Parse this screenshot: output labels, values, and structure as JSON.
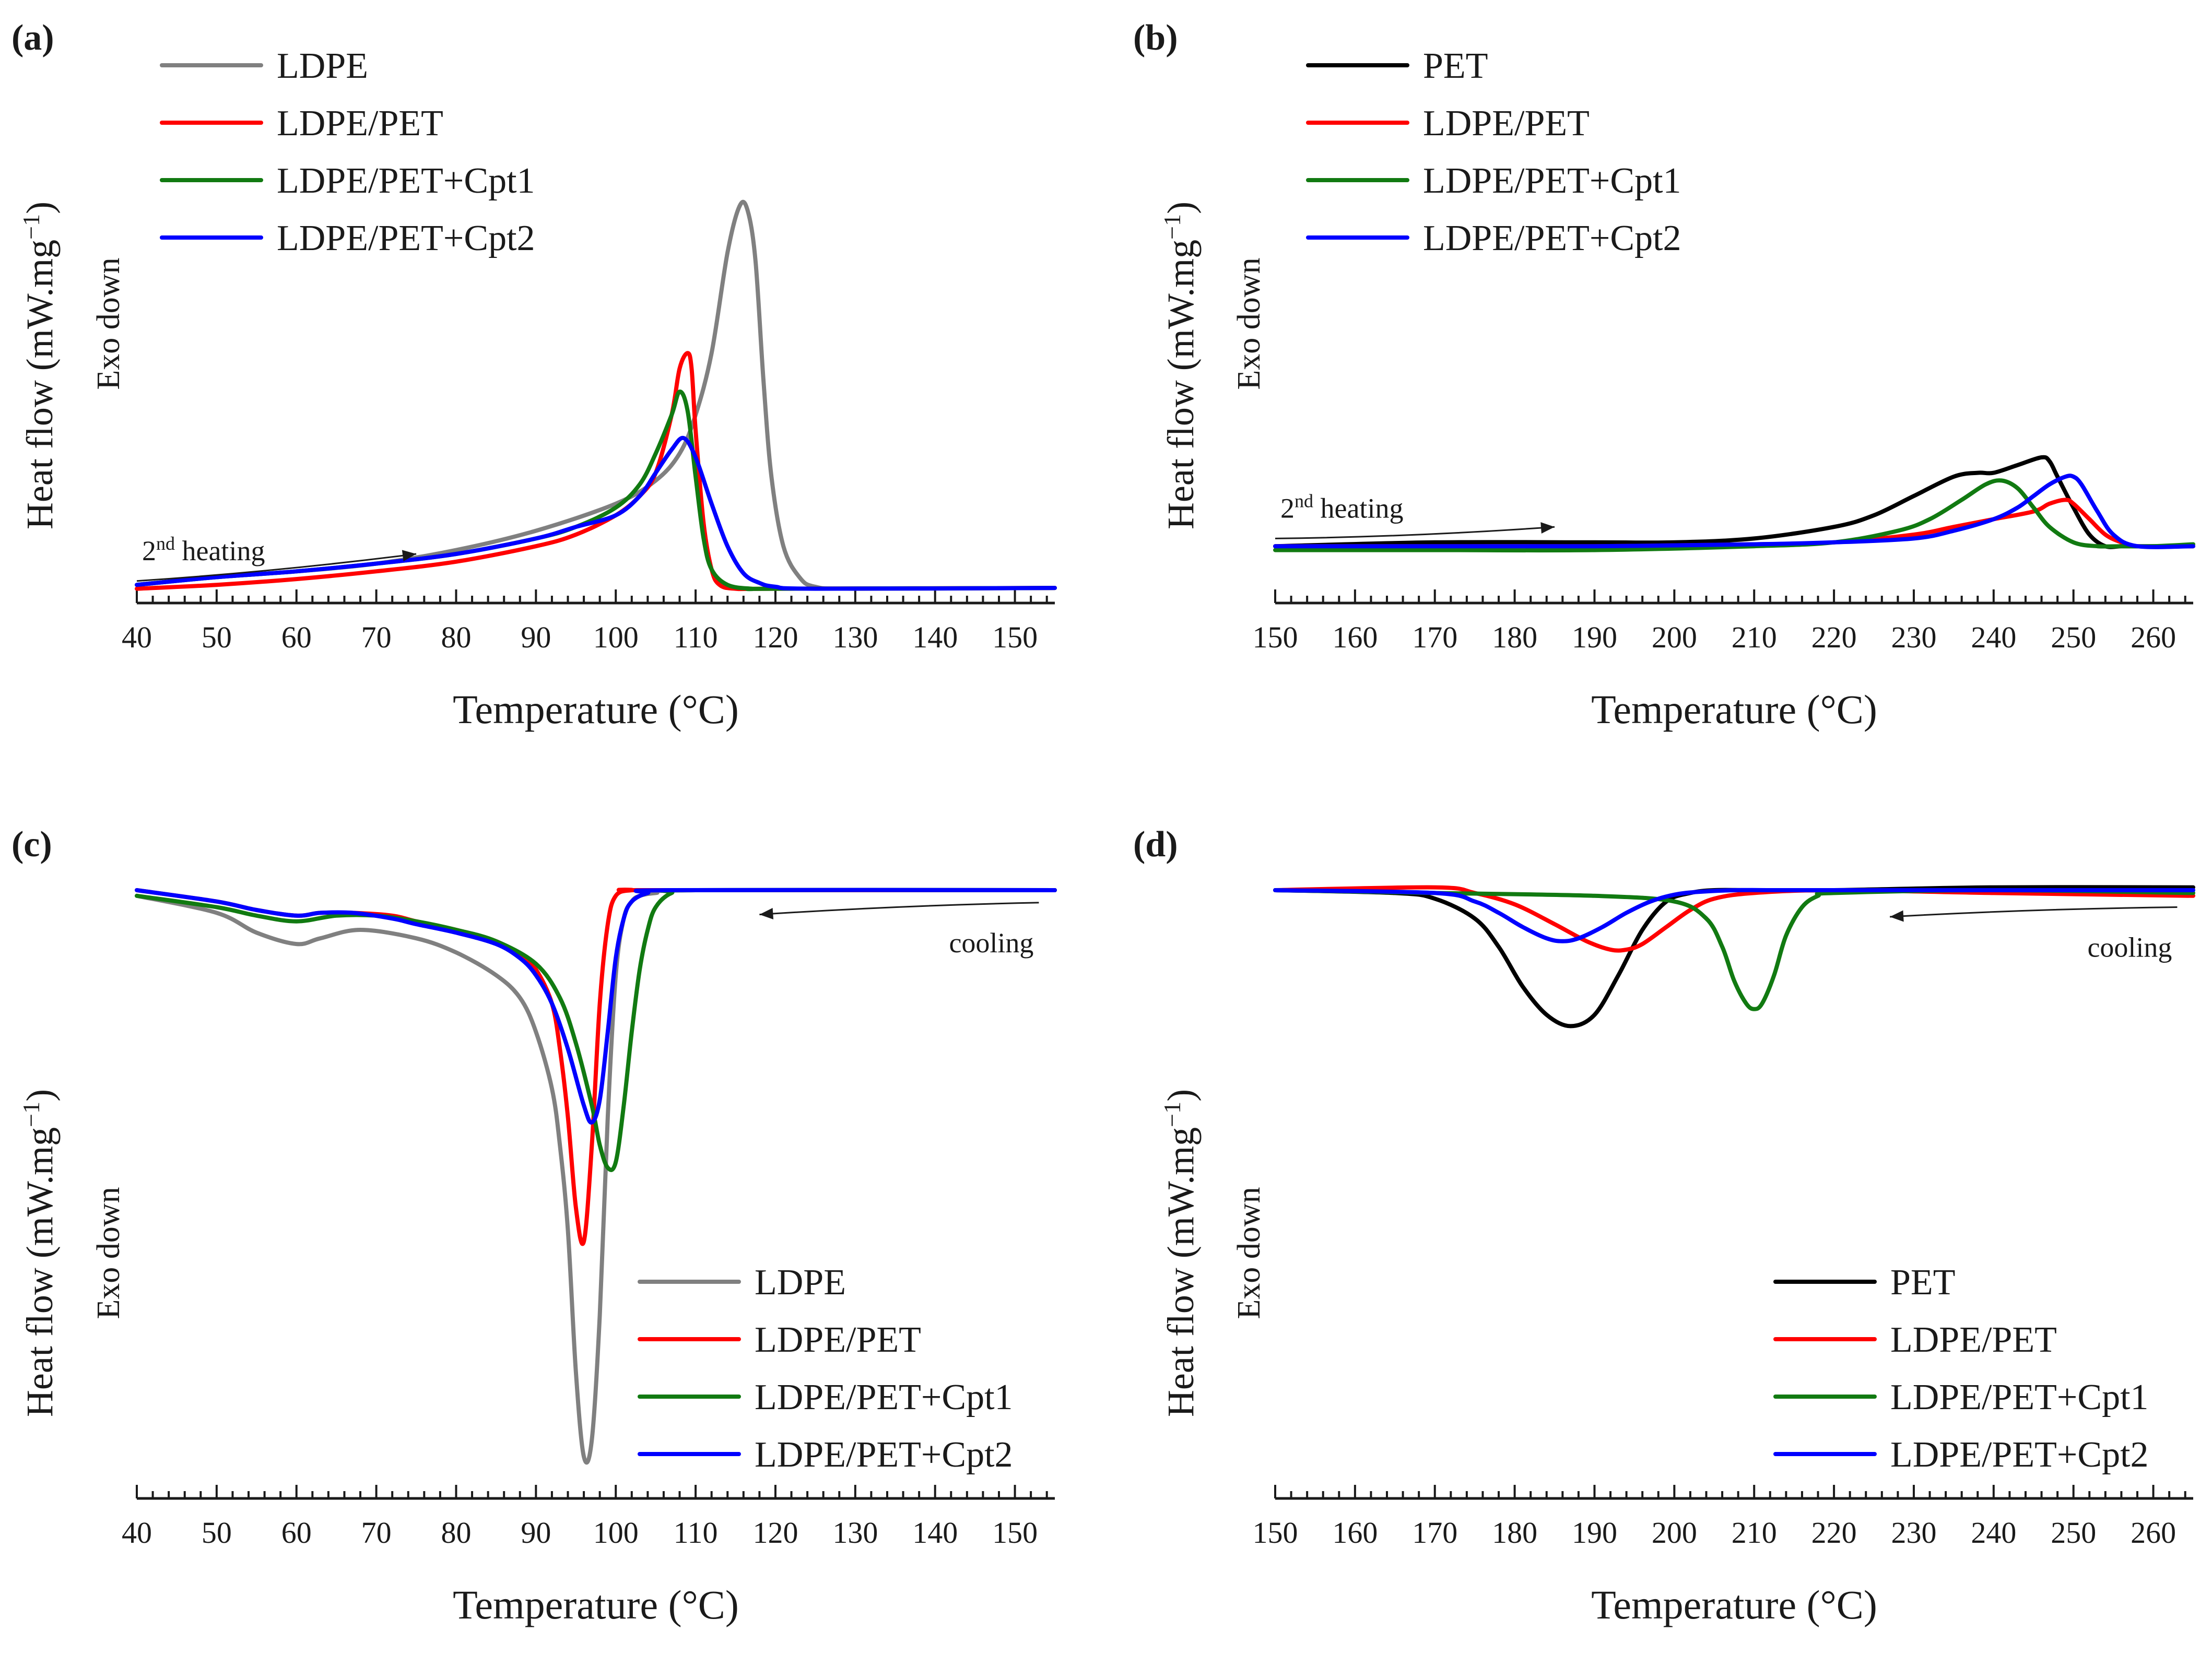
{
  "figure": {
    "ylabel": "Heat flow (mW.mg",
    "ylabel_sup": "−1",
    "ylabel_end": ")",
    "exo_label": "Exo down",
    "xlabel": "Temperature (°C)"
  },
  "colors": {
    "LDPE": "#808080",
    "PET": "#000000",
    "LDPE/PET": "#ff0000",
    "LDPE/PET+Cpt1": "#117a11",
    "LDPE/PET+Cpt2": "#0000ff"
  },
  "chart_data": [
    {
      "panel": "(a)",
      "type": "line",
      "title": "",
      "xlabel": "Temperature (°C)",
      "ylabel": "Heat flow (mW.mg−1)",
      "xlim": [
        40,
        155
      ],
      "ylim": [
        0,
        1
      ],
      "x_ticks": [
        40,
        50,
        60,
        70,
        80,
        90,
        100,
        110,
        120,
        130,
        140,
        150
      ],
      "annotation": {
        "text": "2",
        "sup": "nd",
        "rest": " heating",
        "arrow_from": [
          40,
          0.03
        ],
        "arrow_to": [
          75,
          0.1
        ]
      },
      "series": [
        {
          "name": "LDPE",
          "x": [
            40,
            50,
            60,
            70,
            80,
            90,
            100,
            105,
            108,
            110,
            112,
            114,
            115.5,
            116.5,
            117.5,
            118.5,
            119.5,
            121,
            123,
            125,
            130,
            155
          ],
          "y": [
            0.02,
            0.04,
            0.055,
            0.075,
            0.11,
            0.16,
            0.23,
            0.29,
            0.36,
            0.46,
            0.62,
            0.88,
            1.0,
            0.99,
            0.86,
            0.55,
            0.3,
            0.12,
            0.04,
            0.015,
            0.01,
            0.012
          ]
        },
        {
          "name": "LDPE/PET",
          "x": [
            40,
            50,
            60,
            70,
            80,
            90,
            95,
            100,
            103,
            105,
            107,
            108,
            109,
            109.5,
            110,
            111,
            112,
            113,
            115,
            120,
            155
          ],
          "y": [
            0.01,
            0.02,
            0.035,
            0.055,
            0.08,
            0.12,
            0.15,
            0.2,
            0.25,
            0.31,
            0.46,
            0.58,
            0.62,
            0.58,
            0.42,
            0.18,
            0.06,
            0.02,
            0.01,
            0.01,
            0.012
          ]
        },
        {
          "name": "LDPE/PET+Cpt1",
          "x": [
            40,
            50,
            60,
            70,
            80,
            90,
            95,
            100,
            103,
            105,
            107,
            108,
            109,
            110,
            111,
            112,
            114,
            117,
            120,
            155
          ],
          "y": [
            0.02,
            0.04,
            0.055,
            0.075,
            0.1,
            0.14,
            0.17,
            0.22,
            0.28,
            0.36,
            0.46,
            0.52,
            0.47,
            0.3,
            0.14,
            0.06,
            0.02,
            0.01,
            0.01,
            0.012
          ]
        },
        {
          "name": "LDPE/PET+Cpt2",
          "x": [
            40,
            50,
            60,
            70,
            80,
            90,
            95,
            100,
            103,
            105,
            107,
            108.5,
            110,
            112,
            114,
            116,
            118,
            120,
            125,
            155
          ],
          "y": [
            0.02,
            0.04,
            0.055,
            0.075,
            0.1,
            0.14,
            0.17,
            0.2,
            0.25,
            0.31,
            0.37,
            0.4,
            0.35,
            0.23,
            0.12,
            0.05,
            0.025,
            0.015,
            0.01,
            0.012
          ]
        }
      ]
    },
    {
      "panel": "(b)",
      "type": "line",
      "title": "",
      "xlabel": "Temperature (°C)",
      "ylabel": "Heat flow (mW.mg−1)",
      "xlim": [
        150,
        265
      ],
      "ylim": [
        0,
        1
      ],
      "x_ticks": [
        150,
        160,
        170,
        180,
        190,
        200,
        210,
        220,
        230,
        240,
        250,
        260
      ],
      "annotation": {
        "text": "2",
        "sup": "nd",
        "rest": " heating",
        "arrow_from": [
          150,
          0.14
        ],
        "arrow_to": [
          185,
          0.17
        ]
      },
      "series": [
        {
          "name": "PET",
          "x": [
            150,
            170,
            190,
            200,
            210,
            220,
            225,
            230,
            235,
            238,
            240,
            243,
            246,
            247,
            248,
            250,
            252,
            254,
            256,
            258,
            265
          ],
          "y": [
            0.12,
            0.13,
            0.13,
            0.13,
            0.14,
            0.17,
            0.2,
            0.25,
            0.3,
            0.31,
            0.31,
            0.33,
            0.35,
            0.34,
            0.3,
            0.22,
            0.15,
            0.12,
            0.12,
            0.12,
            0.12
          ]
        },
        {
          "name": "LDPE/PET",
          "x": [
            150,
            170,
            190,
            210,
            220,
            230,
            235,
            240,
            245,
            247,
            249,
            250,
            252,
            254,
            256,
            258,
            265
          ],
          "y": [
            0.12,
            0.12,
            0.12,
            0.125,
            0.13,
            0.15,
            0.17,
            0.19,
            0.21,
            0.23,
            0.24,
            0.23,
            0.19,
            0.15,
            0.13,
            0.12,
            0.12
          ]
        },
        {
          "name": "LDPE/PET+Cpt1",
          "x": [
            150,
            170,
            190,
            210,
            220,
            228,
            232,
            236,
            239,
            241,
            243,
            245,
            247,
            250,
            253,
            256,
            260,
            265
          ],
          "y": [
            0.11,
            0.11,
            0.11,
            0.12,
            0.13,
            0.16,
            0.19,
            0.24,
            0.28,
            0.29,
            0.27,
            0.22,
            0.17,
            0.13,
            0.12,
            0.12,
            0.12,
            0.125
          ]
        },
        {
          "name": "LDPE/PET+Cpt2",
          "x": [
            150,
            170,
            190,
            210,
            220,
            230,
            235,
            240,
            243,
            245,
            247,
            249,
            250,
            251,
            253,
            255,
            258,
            265
          ],
          "y": [
            0.12,
            0.12,
            0.12,
            0.125,
            0.13,
            0.14,
            0.16,
            0.19,
            0.22,
            0.25,
            0.28,
            0.3,
            0.3,
            0.28,
            0.21,
            0.15,
            0.12,
            0.12
          ]
        }
      ]
    },
    {
      "panel": "(c)",
      "type": "line",
      "title": "",
      "xlabel": "Temperature (°C)",
      "ylabel": "Heat flow (mW.mg−1)",
      "xlim": [
        40,
        155
      ],
      "ylim": [
        -1,
        0
      ],
      "x_ticks": [
        40,
        50,
        60,
        70,
        80,
        90,
        100,
        110,
        120,
        130,
        140,
        150
      ],
      "annotation": {
        "text": "cooling",
        "sup": "",
        "rest": "",
        "arrow_from": [
          153,
          -0.022
        ],
        "arrow_to": [
          118,
          -0.043
        ]
      },
      "series": [
        {
          "name": "LDPE",
          "x": [
            40,
            50,
            55,
            60,
            63,
            68,
            75,
            80,
            85,
            88,
            90,
            92,
            93,
            94,
            95,
            96,
            97,
            98,
            99,
            100,
            101,
            102,
            103,
            105,
            110,
            155
          ],
          "y": [
            -0.01,
            -0.04,
            -0.075,
            -0.095,
            -0.085,
            -0.07,
            -0.085,
            -0.11,
            -0.15,
            -0.19,
            -0.25,
            -0.35,
            -0.45,
            -0.6,
            -0.85,
            -1.0,
            -0.97,
            -0.75,
            -0.4,
            -0.15,
            -0.05,
            -0.02,
            -0.01,
            -0.005,
            0,
            0
          ]
        },
        {
          "name": "LDPE/PET",
          "x": [
            40,
            50,
            55,
            60,
            63,
            67,
            72,
            75,
            80,
            85,
            88,
            90,
            92,
            93,
            94,
            95,
            96,
            97,
            98,
            99,
            100,
            102,
            105,
            155
          ],
          "y": [
            0,
            -0.02,
            -0.035,
            -0.045,
            -0.04,
            -0.04,
            -0.045,
            -0.055,
            -0.07,
            -0.09,
            -0.115,
            -0.14,
            -0.2,
            -0.28,
            -0.4,
            -0.56,
            -0.62,
            -0.45,
            -0.2,
            -0.06,
            -0.01,
            0,
            0,
            0
          ]
        },
        {
          "name": "LDPE/PET+Cpt1",
          "x": [
            40,
            50,
            55,
            60,
            65,
            70,
            75,
            80,
            85,
            90,
            93,
            95,
            97,
            98,
            99,
            100,
            101,
            102,
            103,
            104,
            105,
            107,
            110,
            155
          ],
          "y": [
            -0.01,
            -0.03,
            -0.045,
            -0.055,
            -0.045,
            -0.045,
            -0.055,
            -0.07,
            -0.09,
            -0.13,
            -0.19,
            -0.27,
            -0.38,
            -0.45,
            -0.49,
            -0.48,
            -0.38,
            -0.25,
            -0.14,
            -0.07,
            -0.03,
            -0.005,
            0,
            0
          ]
        },
        {
          "name": "LDPE/PET+Cpt2",
          "x": [
            40,
            50,
            55,
            60,
            63,
            67,
            72,
            75,
            80,
            85,
            88,
            90,
            92,
            94,
            96,
            97,
            98,
            99,
            100,
            101,
            102,
            104,
            107,
            155
          ],
          "y": [
            0,
            -0.02,
            -0.035,
            -0.045,
            -0.04,
            -0.04,
            -0.05,
            -0.06,
            -0.075,
            -0.095,
            -0.12,
            -0.15,
            -0.2,
            -0.28,
            -0.38,
            -0.41,
            -0.37,
            -0.25,
            -0.12,
            -0.05,
            -0.02,
            -0.005,
            0,
            0
          ]
        }
      ]
    },
    {
      "panel": "(d)",
      "type": "line",
      "title": "",
      "xlabel": "Temperature (°C)",
      "ylabel": "Heat flow (mW.mg−1)",
      "xlim": [
        150,
        265
      ],
      "ylim": [
        -1,
        0
      ],
      "x_ticks": [
        150,
        160,
        170,
        180,
        190,
        200,
        210,
        220,
        230,
        240,
        250,
        260
      ],
      "annotation": {
        "text": "cooling",
        "sup": "",
        "rest": "",
        "arrow_from": [
          263,
          -0.03
        ],
        "arrow_to": [
          227,
          -0.047
        ]
      },
      "series": [
        {
          "name": "PET",
          "x": [
            150,
            165,
            170,
            175,
            178,
            181,
            184,
            187,
            190,
            193,
            196,
            199,
            202,
            205,
            210,
            220,
            240,
            265
          ],
          "y": [
            0,
            -0.005,
            -0.015,
            -0.05,
            -0.1,
            -0.17,
            -0.22,
            -0.24,
            -0.22,
            -0.15,
            -0.07,
            -0.02,
            -0.005,
            0,
            0,
            0,
            0.005,
            0.005
          ]
        },
        {
          "name": "LDPE/PET",
          "x": [
            150,
            170,
            175,
            180,
            185,
            189,
            192,
            194,
            196,
            199,
            202,
            205,
            210,
            220,
            240,
            265
          ],
          "y": [
            0,
            0.005,
            -0.005,
            -0.025,
            -0.06,
            -0.09,
            -0.105,
            -0.105,
            -0.095,
            -0.065,
            -0.035,
            -0.015,
            -0.005,
            0,
            -0.005,
            -0.01
          ]
        },
        {
          "name": "LDPE/PET+Cpt1",
          "x": [
            150,
            170,
            190,
            200,
            204,
            206,
            207.5,
            209,
            210,
            211,
            212.5,
            214,
            216,
            218,
            220,
            240,
            265
          ],
          "y": [
            0,
            -0.005,
            -0.01,
            -0.02,
            -0.05,
            -0.1,
            -0.16,
            -0.2,
            -0.21,
            -0.2,
            -0.15,
            -0.08,
            -0.03,
            -0.01,
            -0.005,
            0,
            -0.005
          ]
        },
        {
          "name": "LDPE/PET+Cpt2",
          "x": [
            150,
            170,
            175,
            178,
            181,
            184,
            186,
            188,
            191,
            194,
            197,
            200,
            203,
            208,
            215,
            240,
            265
          ],
          "y": [
            0,
            -0.005,
            -0.02,
            -0.04,
            -0.065,
            -0.085,
            -0.09,
            -0.085,
            -0.065,
            -0.04,
            -0.02,
            -0.008,
            -0.003,
            0,
            0,
            0,
            0
          ]
        }
      ]
    }
  ]
}
